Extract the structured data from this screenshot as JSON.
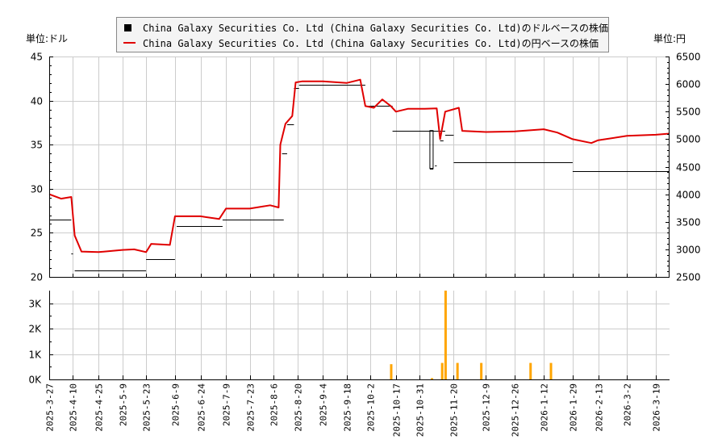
{
  "legend": {
    "usd_label": "China Galaxy Securities Co. Ltd (China Galaxy Securities Co. Ltd)のドルベースの株価",
    "jpy_label": "China Galaxy Securities Co. Ltd (China Galaxy Securities Co. Ltd)の円ベースの株価"
  },
  "axes": {
    "left_unit": "単位:ドル",
    "right_unit": "単位:円"
  },
  "colors": {
    "jpy_line": "#e00000",
    "usd_bars": "#000000",
    "volume_bars": "#ffa500",
    "grid": "#cccccc"
  },
  "chart_data": [
    {
      "type": "line",
      "title": "",
      "xlabel": "",
      "ylabel_left": "単位:ドル",
      "ylabel_right": "単位:円",
      "ylim_left": [
        20,
        45
      ],
      "ylim_right": [
        2500,
        6500
      ],
      "yticks_left": [
        20,
        25,
        30,
        35,
        40,
        45
      ],
      "yticks_right": [
        2500,
        3000,
        3500,
        4000,
        4500,
        5000,
        5500,
        6000,
        6500
      ],
      "x_ticks": [
        "2025-3-27",
        "2025-4-10",
        "2025-4-25",
        "2025-5-9",
        "2025-5-23",
        "2025-6-9",
        "2025-6-24",
        "2025-7-9",
        "2025-7-23",
        "2025-8-6",
        "2025-8-20",
        "2025-9-4",
        "2025-9-18",
        "2025-10-2",
        "2025-10-17",
        "2025-10-31",
        "2025-11-20",
        "2025-12-9",
        "2025-12-26",
        "2026-1-12",
        "2026-1-29",
        "2026-2-13",
        "2026-3-2",
        "2026-3-19"
      ],
      "grid": true,
      "legend_position": "top",
      "series": [
        {
          "name": "円ベースの株価",
          "axis": "right",
          "color": "#e00000",
          "points": [
            [
              "2025-3-27",
              4000
            ],
            [
              "2025-4-3",
              3920
            ],
            [
              "2025-4-9",
              3950
            ],
            [
              "2025-4-11",
              3250
            ],
            [
              "2025-4-15",
              2960
            ],
            [
              "2025-4-25",
              2950
            ],
            [
              "2025-5-9",
              2990
            ],
            [
              "2025-5-16",
              3000
            ],
            [
              "2025-5-23",
              2950
            ],
            [
              "2025-5-26",
              3100
            ],
            [
              "2025-6-6",
              3080
            ],
            [
              "2025-6-9",
              3600
            ],
            [
              "2025-6-24",
              3600
            ],
            [
              "2025-7-5",
              3550
            ],
            [
              "2025-7-9",
              3740
            ],
            [
              "2025-7-23",
              3740
            ],
            [
              "2025-8-4",
              3800
            ],
            [
              "2025-8-9",
              3760
            ],
            [
              "2025-8-10",
              4900
            ],
            [
              "2025-8-13",
              5280
            ],
            [
              "2025-8-17",
              5420
            ],
            [
              "2025-8-19",
              6030
            ],
            [
              "2025-8-23",
              6050
            ],
            [
              "2025-9-4",
              6050
            ],
            [
              "2025-9-18",
              6020
            ],
            [
              "2025-9-26",
              6080
            ],
            [
              "2025-9-29",
              5600
            ],
            [
              "2025-10-4",
              5570
            ],
            [
              "2025-10-9",
              5720
            ],
            [
              "2025-10-14",
              5600
            ],
            [
              "2025-10-17",
              5500
            ],
            [
              "2025-10-24",
              5550
            ],
            [
              "2025-11-3",
              5550
            ],
            [
              "2025-11-10",
              5560
            ],
            [
              "2025-11-12",
              5000
            ],
            [
              "2025-11-15",
              5500
            ],
            [
              "2025-11-23",
              5570
            ],
            [
              "2025-11-25",
              5150
            ],
            [
              "2025-12-9",
              5130
            ],
            [
              "2025-12-26",
              5140
            ],
            [
              "2026-1-12",
              5180
            ],
            [
              "2026-1-20",
              5120
            ],
            [
              "2026-1-29",
              5000
            ],
            [
              "2026-2-9",
              4930
            ],
            [
              "2026-2-13",
              4980
            ],
            [
              "2026-3-2",
              5060
            ],
            [
              "2026-3-19",
              5080
            ],
            [
              "2026-3-27",
              5100
            ]
          ]
        },
        {
          "name": "ドルベースの株価",
          "axis": "left",
          "color": "#000000",
          "segments": [
            {
              "from": "2025-3-27",
              "to": "2025-4-9",
              "value": 26.5
            },
            {
              "from": "2025-4-9",
              "to": "2025-4-10",
              "value": 22.7
            },
            {
              "from": "2025-4-11",
              "to": "2025-5-23",
              "value": 20.7
            },
            {
              "from": "2025-5-23",
              "to": "2025-6-9",
              "value": 22.0
            },
            {
              "from": "2025-6-10",
              "to": "2025-7-7",
              "value": 25.8
            },
            {
              "from": "2025-7-7",
              "to": "2025-8-12",
              "value": 26.5
            },
            {
              "from": "2025-8-11",
              "to": "2025-8-14",
              "value": 34.0
            },
            {
              "from": "2025-8-14",
              "to": "2025-8-18",
              "value": 37.3
            },
            {
              "from": "2025-8-18",
              "to": "2025-8-21",
              "value": 41.4
            },
            {
              "from": "2025-8-21",
              "to": "2025-9-29",
              "value": 41.8
            },
            {
              "from": "2025-9-29",
              "to": "2025-10-15",
              "value": 39.4
            },
            {
              "from": "2025-10-15",
              "to": "2025-11-15",
              "value": 36.6
            },
            {
              "from": "2025-11-6",
              "to": "2025-11-8",
              "value": 32.3
            },
            {
              "from": "2025-11-9",
              "to": "2025-11-10",
              "value": 32.6
            },
            {
              "from": "2025-11-12",
              "to": "2025-11-14",
              "value": 35.5
            },
            {
              "from": "2025-11-15",
              "to": "2025-11-20",
              "value": 36.1
            },
            {
              "from": "2025-11-20",
              "to": "2026-1-29",
              "value": 33.0
            },
            {
              "from": "2026-1-29",
              "to": "2026-3-27",
              "value": 32.0
            }
          ]
        }
      ]
    },
    {
      "type": "bar",
      "title": "",
      "ylabel": "",
      "ylim": [
        0,
        3500
      ],
      "yticks": [
        "0K",
        "1K",
        "2K",
        "3K"
      ],
      "color": "#ffa500",
      "categories": [
        "2025-10-14",
        "2025-11-7",
        "2025-11-13",
        "2025-11-15",
        "2025-11-22",
        "2025-12-6",
        "2026-1-4",
        "2026-1-16"
      ],
      "values": [
        600,
        50,
        650,
        3500,
        650,
        650,
        650,
        650
      ]
    }
  ]
}
